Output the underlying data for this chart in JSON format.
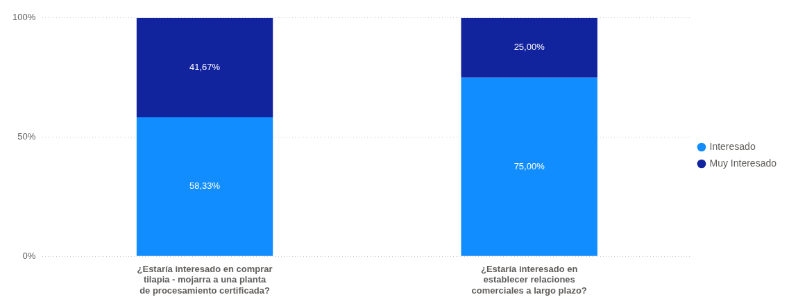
{
  "chart_data": {
    "type": "bar",
    "stacked": true,
    "categories": [
      "¿Estaría interesado en comprar tilapia - mojarra a una planta de procesamiento certificada?",
      "¿Estaría interesado en establecer relaciones comerciales a largo plazo?"
    ],
    "series": [
      {
        "name": "Interesado",
        "color": "#118dff",
        "values": [
          58.33,
          75
        ],
        "value_labels": [
          "58,33%",
          "75,00%"
        ]
      },
      {
        "name": "Muy Interesado",
        "color": "#12239e",
        "values": [
          41.67,
          25
        ],
        "value_labels": [
          "41,67%",
          "25,00%"
        ]
      }
    ],
    "ylim": [
      0,
      100
    ],
    "yticks": [
      {
        "value": 0,
        "label": "0%"
      },
      {
        "value": 50,
        "label": "50%"
      },
      {
        "value": 100,
        "label": "100%"
      }
    ],
    "grid": "y",
    "legend": "right",
    "marker": "circle"
  }
}
